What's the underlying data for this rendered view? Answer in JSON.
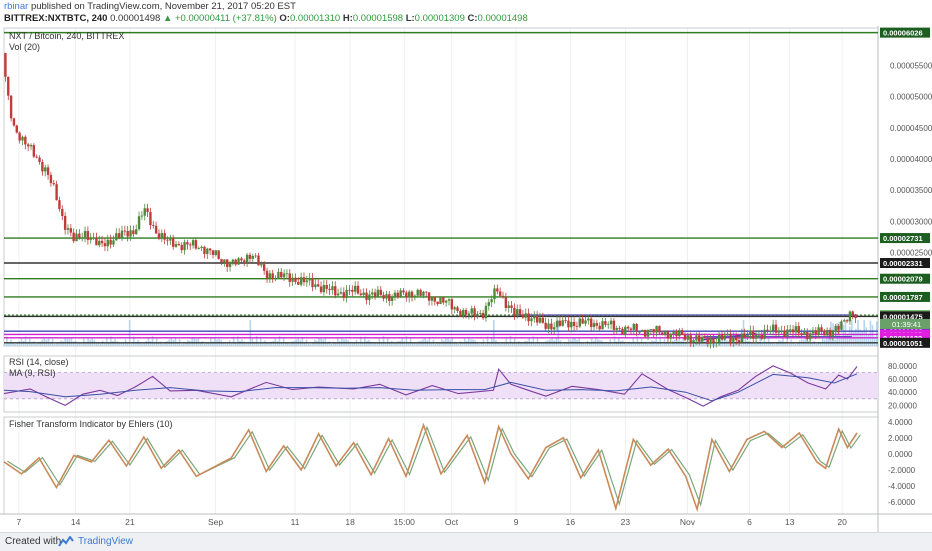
{
  "header": {
    "author": "rbinar",
    "published": "published on TradingView.com, November 21, 2017 05:20 EST",
    "symbol": "BITTREX:NXTBTC, 240",
    "last": "0.00001498",
    "change": "+0.00000411 (+37.81%)",
    "open_label": "O:",
    "open": "0.00001310",
    "high_label": "H:",
    "high": "0.00001598",
    "low_label": "L:",
    "low": "0.00001309",
    "close_label": "C:",
    "close": "0.00001498"
  },
  "footer": {
    "made_with": "Created with",
    "brand": "TradingView"
  },
  "colors": {
    "up": "#4e8a3a",
    "down": "#c23b3b",
    "level_green": "#2e7d1f",
    "level_dark": "#333333",
    "volume": "#a9cfe8",
    "rsi_line": "#7d3a9e",
    "rsi_ma": "#3b4fa8",
    "rsi_band": "#efe0f7",
    "fisher_main": "#c98a5a",
    "fisher_signal": "#7aa67a"
  },
  "chart_data": [
    {
      "type": "candlestick",
      "title": "NXT / Bitcoin, 240, BITTREX",
      "subtitle": "Vol (20)",
      "ylim": [
        1e-05,
        6.1e-05
      ],
      "y_ticks": [
        "0.00005500",
        "0.00005000",
        "0.00004500",
        "0.00004000",
        "0.00003500",
        "0.00003000",
        "0.00002500"
      ],
      "y_tick_values": [
        5.5e-05,
        5e-05,
        4.5e-05,
        4e-05,
        3.5e-05,
        3e-05,
        2.5e-05
      ],
      "x_ticks": [
        {
          "label": "7",
          "frac": 0.017
        },
        {
          "label": "14",
          "frac": 0.082
        },
        {
          "label": "21",
          "frac": 0.144
        },
        {
          "label": "Sep",
          "frac": 0.242
        },
        {
          "label": "11",
          "frac": 0.333
        },
        {
          "label": "18",
          "frac": 0.396
        },
        {
          "label": "15:00",
          "frac": 0.458
        },
        {
          "label": "Oct",
          "frac": 0.512
        },
        {
          "label": "9",
          "frac": 0.586
        },
        {
          "label": "16",
          "frac": 0.648
        },
        {
          "label": "23",
          "frac": 0.711
        },
        {
          "label": "Nov",
          "frac": 0.782
        },
        {
          "label": "6",
          "frac": 0.853
        },
        {
          "label": "13",
          "frac": 0.899
        },
        {
          "label": "20",
          "frac": 0.959
        }
      ],
      "horizontal_levels": [
        {
          "value": 6.026e-05,
          "label": "0.00006026",
          "color": "#2e7d1f",
          "style": "solid",
          "tag": "#1b5e20"
        },
        {
          "value": 2.731e-05,
          "label": "0.00002731",
          "color": "#2e7d1f",
          "style": "solid",
          "tag": "#1b5e20"
        },
        {
          "value": 2.331e-05,
          "label": "0.00002331",
          "color": "#333333",
          "style": "solid",
          "tag": "#1b1b1b"
        },
        {
          "value": 2.079e-05,
          "label": "0.00002079",
          "color": "#2e7d1f",
          "style": "solid",
          "tag": "#1b5e20"
        },
        {
          "value": 1.787e-05,
          "label": "0.00001787",
          "color": "#2e7d1f",
          "style": "solid",
          "tag": "#1b5e20"
        },
        {
          "value": 1.498e-05,
          "label": "0.00001498",
          "color": "#2e7d1f",
          "style": "dotted",
          "tag": "#7cbf74"
        },
        {
          "value": 1.475e-05,
          "label": "0.00001475",
          "color": "#333333",
          "style": "solid",
          "tag": "#1b1b1b"
        },
        {
          "value": 1.238e-05,
          "label": "0.00001238",
          "color": "#3f46b5",
          "style": "solid",
          "tag": "#2d36a8"
        },
        {
          "value": 1.185e-05,
          "label": "0.00001185",
          "color": "#d11fd1",
          "style": "solid",
          "tag": "#e01ee0"
        },
        {
          "value": 1.132e-05,
          "label": "0.00001132",
          "color": "#d11fd1",
          "style": "solid",
          "tag": "#e01ee0"
        },
        {
          "value": 1.051e-05,
          "label": "0.00001051",
          "color": "#333333",
          "style": "solid",
          "tag": "#1b1b1b"
        }
      ],
      "countdown": "01:39:41",
      "price_path": [
        [
          0.0,
          5.7e-05
        ],
        [
          0.005,
          5.05e-05
        ],
        [
          0.012,
          4.55e-05
        ],
        [
          0.025,
          4.25e-05
        ],
        [
          0.038,
          4.05e-05
        ],
        [
          0.05,
          3.8e-05
        ],
        [
          0.06,
          3.45e-05
        ],
        [
          0.07,
          3e-05
        ],
        [
          0.082,
          2.68e-05
        ],
        [
          0.095,
          2.83e-05
        ],
        [
          0.11,
          2.6e-05
        ],
        [
          0.13,
          2.75e-05
        ],
        [
          0.15,
          2.85e-05
        ],
        [
          0.162,
          3.18e-05
        ],
        [
          0.175,
          2.85e-05
        ],
        [
          0.19,
          2.65e-05
        ],
        [
          0.21,
          2.62e-05
        ],
        [
          0.23,
          2.58e-05
        ],
        [
          0.25,
          2.38e-05
        ],
        [
          0.27,
          2.32e-05
        ],
        [
          0.285,
          2.5e-05
        ],
        [
          0.3,
          2.15e-05
        ],
        [
          0.32,
          2.12e-05
        ],
        [
          0.34,
          2.05e-05
        ],
        [
          0.36,
          1.98e-05
        ],
        [
          0.38,
          1.85e-05
        ],
        [
          0.4,
          1.88e-05
        ],
        [
          0.42,
          1.82e-05
        ],
        [
          0.45,
          1.8e-05
        ],
        [
          0.47,
          1.86e-05
        ],
        [
          0.49,
          1.78e-05
        ],
        [
          0.51,
          1.68e-05
        ],
        [
          0.53,
          1.5e-05
        ],
        [
          0.55,
          1.54e-05
        ],
        [
          0.566,
          1.9e-05
        ],
        [
          0.575,
          1.72e-05
        ],
        [
          0.586,
          1.5e-05
        ],
        [
          0.6,
          1.5e-05
        ],
        [
          0.62,
          1.33e-05
        ],
        [
          0.64,
          1.35e-05
        ],
        [
          0.66,
          1.38e-05
        ],
        [
          0.69,
          1.34e-05
        ],
        [
          0.71,
          1.27e-05
        ],
        [
          0.74,
          1.24e-05
        ],
        [
          0.76,
          1.21e-05
        ],
        [
          0.79,
          1.13e-05
        ],
        [
          0.8,
          1.08e-05
        ],
        [
          0.82,
          1.12e-05
        ],
        [
          0.84,
          1.13e-05
        ],
        [
          0.86,
          1.17e-05
        ],
        [
          0.88,
          1.25e-05
        ],
        [
          0.9,
          1.24e-05
        ],
        [
          0.92,
          1.2e-05
        ],
        [
          0.94,
          1.22e-05
        ],
        [
          0.955,
          1.27e-05
        ],
        [
          0.962,
          1.35e-05
        ],
        [
          0.968,
          1.5e-05
        ],
        [
          0.972,
          1.58e-05
        ],
        [
          0.976,
          1.5e-05
        ]
      ]
    },
    {
      "type": "line",
      "title": "RSI (14, close)",
      "subtitle": "MA (9, RSI)",
      "ylim": [
        10,
        95
      ],
      "y_ticks": [
        "80.0000",
        "60.0000",
        "40.0000",
        "20.0000"
      ],
      "y_tick_values": [
        80,
        60,
        40,
        20
      ],
      "band": [
        30,
        70
      ],
      "series": [
        {
          "values": [
            [
              0.0,
              38
            ],
            [
              0.03,
              45
            ],
            [
              0.05,
              32
            ],
            [
              0.07,
              20
            ],
            [
              0.09,
              37
            ],
            [
              0.11,
              43
            ],
            [
              0.13,
              35
            ],
            [
              0.15,
              48
            ],
            [
              0.17,
              64
            ],
            [
              0.19,
              42
            ],
            [
              0.22,
              43
            ],
            [
              0.26,
              33
            ],
            [
              0.3,
              55
            ],
            [
              0.33,
              44
            ],
            [
              0.36,
              48
            ],
            [
              0.4,
              45
            ],
            [
              0.43,
              52
            ],
            [
              0.46,
              36
            ],
            [
              0.49,
              50
            ],
            [
              0.52,
              38
            ],
            [
              0.56,
              43
            ],
            [
              0.566,
              75
            ],
            [
              0.58,
              52
            ],
            [
              0.6,
              43
            ],
            [
              0.62,
              34
            ],
            [
              0.65,
              49
            ],
            [
              0.68,
              44
            ],
            [
              0.71,
              37
            ],
            [
              0.73,
              68
            ],
            [
              0.76,
              44
            ],
            [
              0.78,
              32
            ],
            [
              0.8,
              19
            ],
            [
              0.82,
              33
            ],
            [
              0.84,
              43
            ],
            [
              0.86,
              64
            ],
            [
              0.88,
              80
            ],
            [
              0.9,
              69
            ],
            [
              0.92,
              54
            ],
            [
              0.94,
              45
            ],
            [
              0.955,
              66
            ],
            [
              0.965,
              60
            ],
            [
              0.976,
              79
            ]
          ]
        },
        {
          "values": [
            [
              0.0,
              43
            ],
            [
              0.03,
              41
            ],
            [
              0.07,
              33
            ],
            [
              0.11,
              37
            ],
            [
              0.15,
              43
            ],
            [
              0.19,
              47
            ],
            [
              0.23,
              42
            ],
            [
              0.27,
              41
            ],
            [
              0.31,
              47
            ],
            [
              0.35,
              47
            ],
            [
              0.39,
              46
            ],
            [
              0.43,
              47
            ],
            [
              0.47,
              43
            ],
            [
              0.51,
              44
            ],
            [
              0.55,
              44
            ],
            [
              0.58,
              55
            ],
            [
              0.62,
              43
            ],
            [
              0.66,
              44
            ],
            [
              0.7,
              42
            ],
            [
              0.74,
              48
            ],
            [
              0.78,
              40
            ],
            [
              0.81,
              27
            ],
            [
              0.84,
              40
            ],
            [
              0.88,
              67
            ],
            [
              0.92,
              62
            ],
            [
              0.95,
              54
            ],
            [
              0.976,
              68
            ]
          ]
        }
      ]
    },
    {
      "type": "line",
      "title": "Fisher Transform Indicator by Ehlers (10)",
      "ylim": [
        -7.5,
        4.6
      ],
      "y_ticks": [
        "4.0000",
        "2.0000",
        "0.0000",
        "-2.0000",
        "-4.0000",
        "-6.0000"
      ],
      "y_tick_values": [
        4,
        2,
        0,
        -2,
        -4,
        -6
      ],
      "series": [
        {
          "values": [
            [
              0.0,
              -1.0
            ],
            [
              0.02,
              -2.5
            ],
            [
              0.04,
              -0.5
            ],
            [
              0.06,
              -4.2
            ],
            [
              0.08,
              -0.2
            ],
            [
              0.1,
              -1.0
            ],
            [
              0.12,
              1.7
            ],
            [
              0.14,
              -1.5
            ],
            [
              0.16,
              2.1
            ],
            [
              0.18,
              -1.8
            ],
            [
              0.2,
              0.5
            ],
            [
              0.22,
              -2.8
            ],
            [
              0.26,
              -0.5
            ],
            [
              0.28,
              3.0
            ],
            [
              0.3,
              -2.2
            ],
            [
              0.32,
              1.0
            ],
            [
              0.34,
              -2.0
            ],
            [
              0.36,
              2.5
            ],
            [
              0.38,
              -1.5
            ],
            [
              0.4,
              1.4
            ],
            [
              0.42,
              -2.6
            ],
            [
              0.44,
              1.9
            ],
            [
              0.46,
              -2.8
            ],
            [
              0.48,
              3.6
            ],
            [
              0.5,
              -2.5
            ],
            [
              0.53,
              2.3
            ],
            [
              0.55,
              -3.6
            ],
            [
              0.566,
              3.4
            ],
            [
              0.58,
              0.0
            ],
            [
              0.6,
              -3.1
            ],
            [
              0.62,
              0.8
            ],
            [
              0.64,
              2.0
            ],
            [
              0.66,
              -3.0
            ],
            [
              0.68,
              0.5
            ],
            [
              0.7,
              -6.8
            ],
            [
              0.72,
              1.8
            ],
            [
              0.74,
              -1.4
            ],
            [
              0.76,
              0.6
            ],
            [
              0.78,
              -2.8
            ],
            [
              0.793,
              -6.9
            ],
            [
              0.81,
              1.8
            ],
            [
              0.83,
              -2.2
            ],
            [
              0.85,
              1.8
            ],
            [
              0.87,
              2.8
            ],
            [
              0.89,
              0.8
            ],
            [
              0.91,
              2.6
            ],
            [
              0.93,
              -1.0
            ],
            [
              0.94,
              -1.8
            ],
            [
              0.955,
              3.1
            ],
            [
              0.965,
              0.8
            ],
            [
              0.976,
              2.6
            ]
          ]
        }
      ]
    }
  ]
}
